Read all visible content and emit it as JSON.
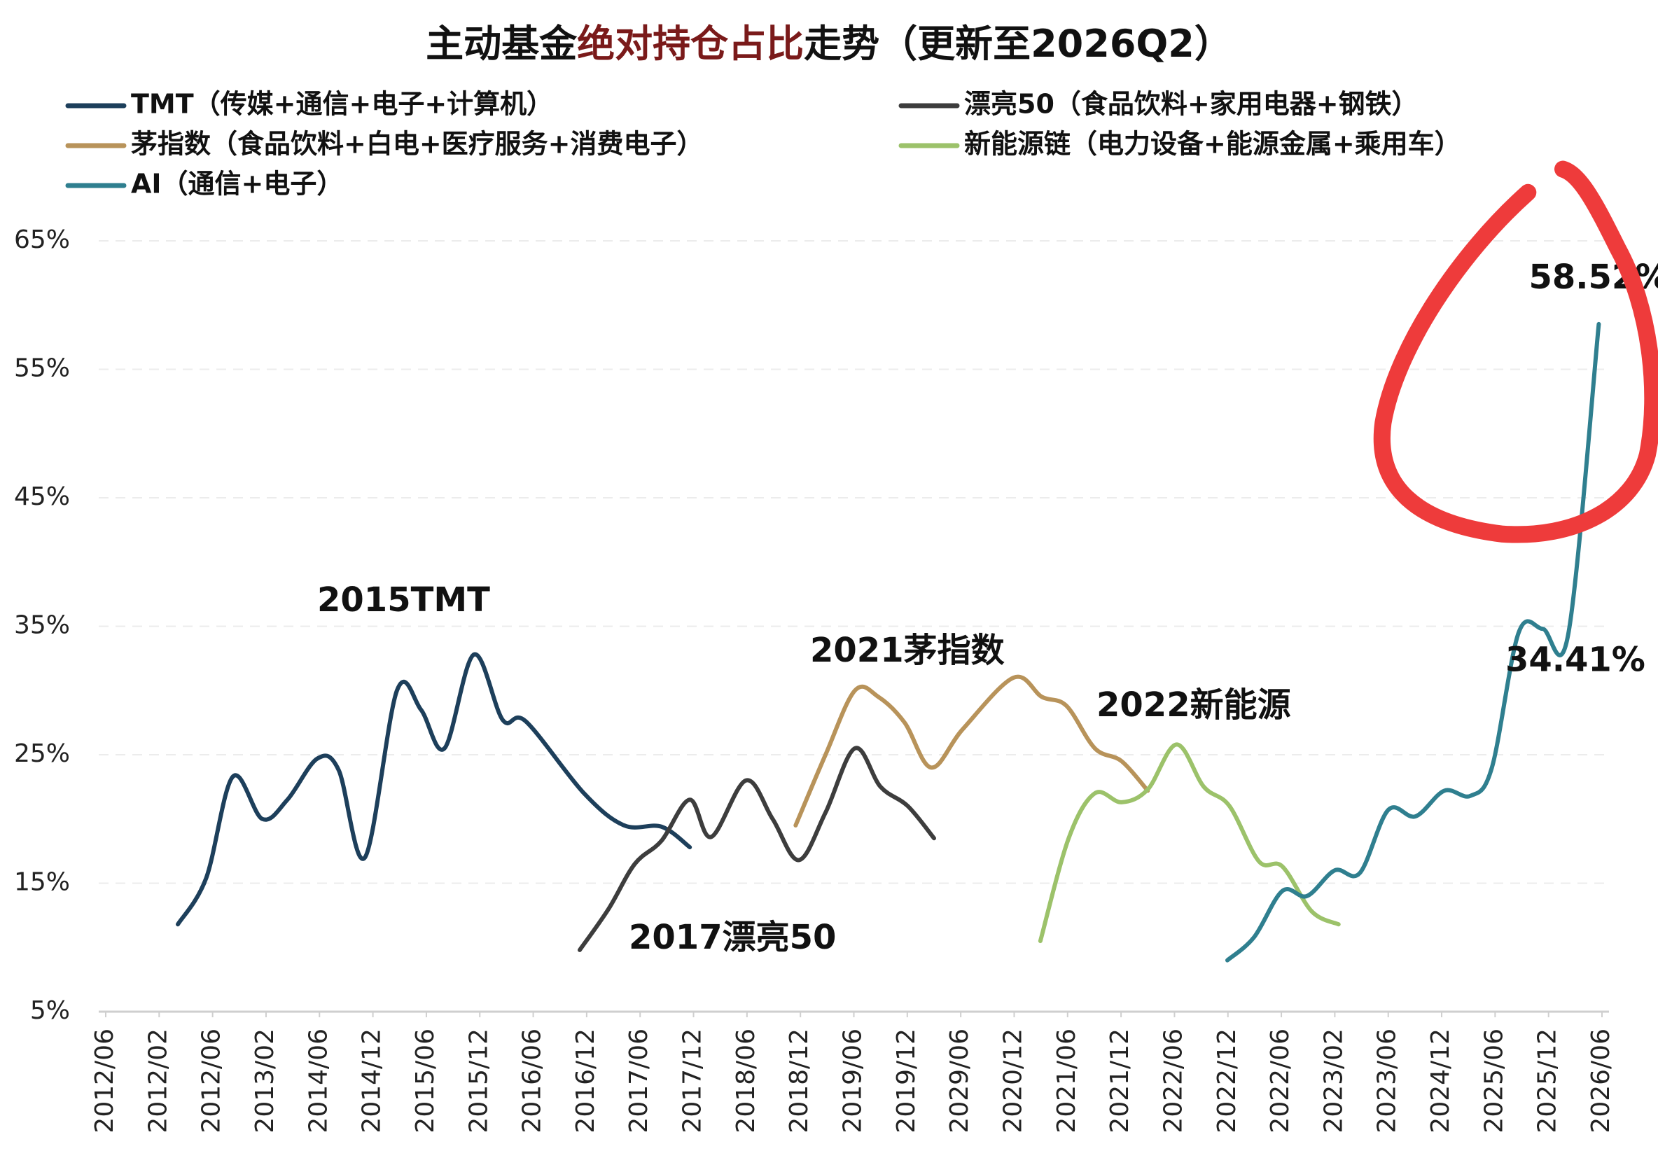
{
  "chart_data": {
    "type": "line",
    "title": [
      "主动基金",
      "绝对持仓占比",
      "走势（更新至2026Q2）"
    ],
    "xlim": [
      0,
      28
    ],
    "xticks": [
      {
        "value": 0,
        "label": "2012/06"
      },
      {
        "value": 1,
        "label": "2012/02"
      },
      {
        "value": 2,
        "label": "2012/06"
      },
      {
        "value": 3,
        "label": "2013/02"
      },
      {
        "value": 4,
        "label": "2014/06"
      },
      {
        "value": 5,
        "label": "2014/12"
      },
      {
        "value": 6,
        "label": "2015/06"
      },
      {
        "value": 7,
        "label": "2015/12"
      },
      {
        "value": 8,
        "label": "2016/06"
      },
      {
        "value": 9,
        "label": "2016/12"
      },
      {
        "value": 10,
        "label": "2017/06"
      },
      {
        "value": 11,
        "label": "2017/12"
      },
      {
        "value": 12,
        "label": "2018/06"
      },
      {
        "value": 13,
        "label": "2018/12"
      },
      {
        "value": 14,
        "label": "2019/06"
      },
      {
        "value": 15,
        "label": "2019/12"
      },
      {
        "value": 16,
        "label": "2029/06"
      },
      {
        "value": 17,
        "label": "2020/12"
      },
      {
        "value": 18,
        "label": "2021/06"
      },
      {
        "value": 19,
        "label": "2021/12"
      },
      {
        "value": 20,
        "label": "2022/06"
      },
      {
        "value": 21,
        "label": "2022/12"
      },
      {
        "value": 22,
        "label": "2022/06"
      },
      {
        "value": 23,
        "label": "2023/02"
      },
      {
        "value": 24,
        "label": "2023/06"
      },
      {
        "value": 25,
        "label": "2024/12"
      },
      {
        "value": 26,
        "label": "2025/06"
      },
      {
        "value": 27,
        "label": "2025/12"
      },
      {
        "value": 28,
        "label": "2026/06"
      }
    ],
    "ylim": [
      5,
      65
    ],
    "yticks": [
      {
        "value": 5,
        "label": "5%"
      },
      {
        "value": 15,
        "label": "15%"
      },
      {
        "value": 25,
        "label": "25%"
      },
      {
        "value": 35,
        "label": "35%"
      },
      {
        "value": 45,
        "label": "45%"
      },
      {
        "value": 55,
        "label": "55%"
      },
      {
        "value": 65,
        "label": "65%"
      }
    ],
    "grid": true,
    "series": [
      {
        "name": "TMT（传媒+通信+电子+计算机）",
        "color": "#1d3f5b",
        "x": [
          1.35,
          1.88,
          2.38,
          2.93,
          3.4,
          3.96,
          4.36,
          4.85,
          5.45,
          5.9,
          6.34,
          6.89,
          7.43,
          7.86,
          8.95,
          9.7,
          10.4,
          10.93
        ],
        "values": [
          11.8,
          15.4,
          23.3,
          20,
          21.5,
          24.7,
          23.8,
          17,
          30,
          28.5,
          25.5,
          32.8,
          27.7,
          27.6,
          22,
          19.5,
          19.4,
          17.8
        ]
      },
      {
        "name": "漂亮50（食品饮料+家用电器+钢铁）",
        "color": "#3d3d3d",
        "x": [
          8.87,
          9.41,
          9.9,
          10.4,
          10.93,
          11.33,
          11.98,
          12.48,
          12.97,
          13.47,
          14.02,
          14.5,
          15.01,
          15.5
        ],
        "values": [
          9.8,
          13,
          16.5,
          18.3,
          21.5,
          18.6,
          23,
          20,
          16.8,
          20.5,
          25.5,
          22.5,
          21,
          18.5
        ]
      },
      {
        "name": "茅指数（食品饮料+白电+医疗服务+消费电子）",
        "color": "#b8935a",
        "x": [
          12.91,
          13.47,
          14.02,
          14.46,
          14.95,
          15.45,
          16.04,
          16.99,
          17.52,
          17.98,
          18.51,
          19.01,
          19.5
        ],
        "values": [
          19.5,
          25,
          30,
          29.5,
          27.5,
          24,
          27,
          31,
          29.5,
          28.8,
          25.5,
          24.5,
          22.2
        ]
      },
      {
        "name": "新能源链（电力设备+能源金属+乘用车）",
        "color": "#9cc26a",
        "x": [
          17.49,
          18.02,
          18.51,
          19.01,
          19.5,
          20.04,
          20.55,
          21.03,
          21.58,
          22.02,
          22.57,
          23.07
        ],
        "values": [
          10.5,
          18.5,
          22,
          21.3,
          22.3,
          25.8,
          22.5,
          21,
          16.7,
          16.3,
          12.8,
          11.8
        ]
      },
      {
        "name": "AI（通信+电子）",
        "color": "#2f7f8f",
        "x": [
          20.99,
          21.49,
          22.02,
          22.48,
          23.0,
          23.47,
          24.0,
          24.51,
          25.05,
          25.54,
          25.94,
          26.44,
          26.89,
          27.37,
          27.94
        ],
        "values": [
          9,
          10.8,
          14.4,
          14,
          16,
          15.8,
          20.7,
          20.2,
          22.2,
          21.8,
          24,
          34.5,
          34.8,
          34.41,
          58.52
        ],
        "value_labels": [
          null,
          null,
          null,
          null,
          null,
          null,
          null,
          null,
          null,
          null,
          null,
          null,
          null,
          "34.41%",
          "58.52%"
        ]
      }
    ],
    "annotations": [
      "2015TMT",
      "2017漂亮50",
      "2021茅指数",
      "2022新能源"
    ]
  }
}
